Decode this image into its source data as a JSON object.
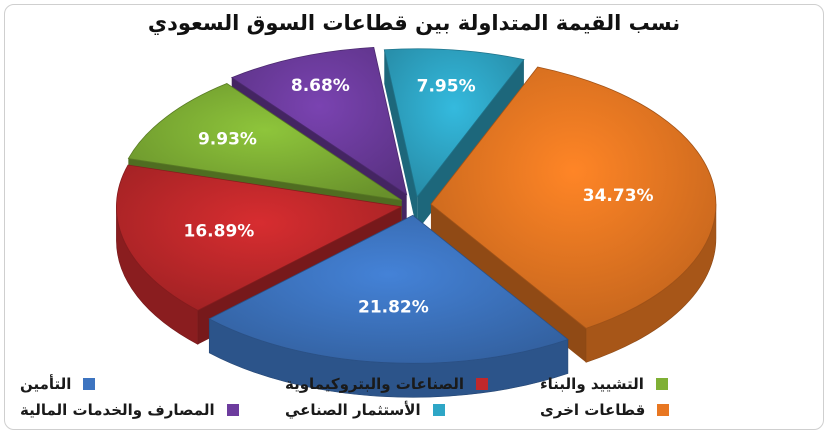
{
  "chart_data": {
    "type": "pie",
    "title": "نسب القيمة المتداولة بين قطاعات السوق السعودي",
    "slices": [
      {
        "name": "قطاعات اخرى",
        "value": 34.73,
        "label": "34.73%",
        "color": "#e87722"
      },
      {
        "name": "التأمين",
        "value": 21.82,
        "label": "21.82%",
        "color": "#3d74c0"
      },
      {
        "name": "الصناعات والبتروكيماوية",
        "value": 16.89,
        "label": "16.89%",
        "color": "#c0282b"
      },
      {
        "name": "التشييد والبناء",
        "value": 9.93,
        "label": "9.93%",
        "color": "#7fb035"
      },
      {
        "name": "المصارف والخدمات المالية",
        "value": 8.68,
        "label": "8.68%",
        "color": "#6d3c9e"
      },
      {
        "name": "الأستثمار الصناعي",
        "value": 7.95,
        "label": "7.95%",
        "color": "#2ea6c6"
      }
    ],
    "legend_placement": "bottom"
  },
  "legend": {
    "rows": [
      [
        "التشييد والبناء",
        "الصناعات والبتروكيماوية",
        "التأمين"
      ],
      [
        "قطاعات اخرى",
        "الأستثمار الصناعي",
        "المصارف والخدمات المالية"
      ]
    ]
  }
}
